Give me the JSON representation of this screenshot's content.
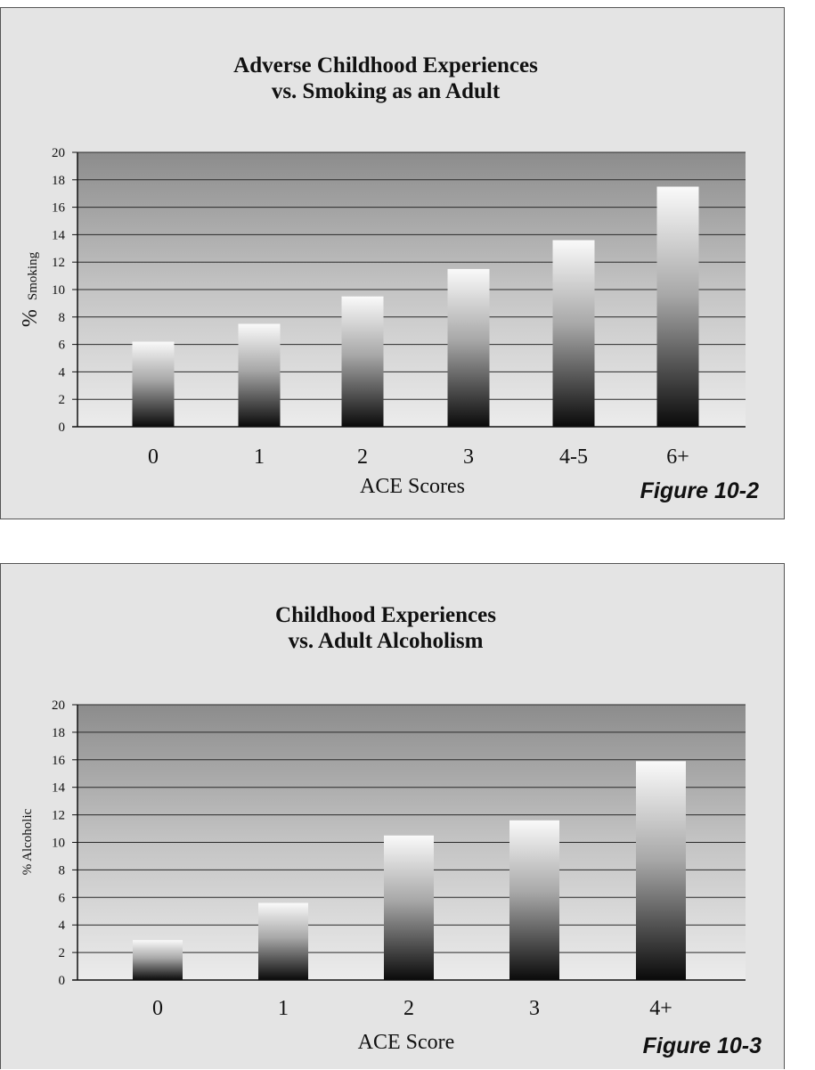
{
  "chart_data": [
    {
      "type": "bar",
      "title": [
        "Adverse Childhood Experiences",
        "vs. Smoking as an Adult"
      ],
      "xlabel": "ACE Scores",
      "ylabel_prefix": "%",
      "ylabel_word": "Smoking",
      "categories": [
        "0",
        "1",
        "2",
        "3",
        "4-5",
        "6+"
      ],
      "values": [
        6.2,
        7.5,
        9.5,
        11.5,
        13.6,
        17.5
      ],
      "ylim": [
        0,
        20
      ],
      "yticks": [
        "0",
        "2",
        "4",
        "6",
        "8",
        "10",
        "12",
        "14",
        "16",
        "18",
        "20"
      ],
      "grid": true,
      "figure_label": "Figure 10-2"
    },
    {
      "type": "bar",
      "title": [
        "Childhood Experiences",
        "vs. Adult Alcoholism"
      ],
      "xlabel": "ACE Score",
      "ylabel": "% Alcoholic",
      "categories": [
        "0",
        "1",
        "2",
        "3",
        "4+"
      ],
      "values": [
        2.9,
        5.6,
        10.5,
        11.6,
        15.9
      ],
      "ylim": [
        0,
        20
      ],
      "yticks": [
        "0",
        "2",
        "4",
        "6",
        "8",
        "10",
        "12",
        "14",
        "16",
        "18",
        "20"
      ],
      "grid": true,
      "figure_label": "Figure 10-3"
    }
  ]
}
